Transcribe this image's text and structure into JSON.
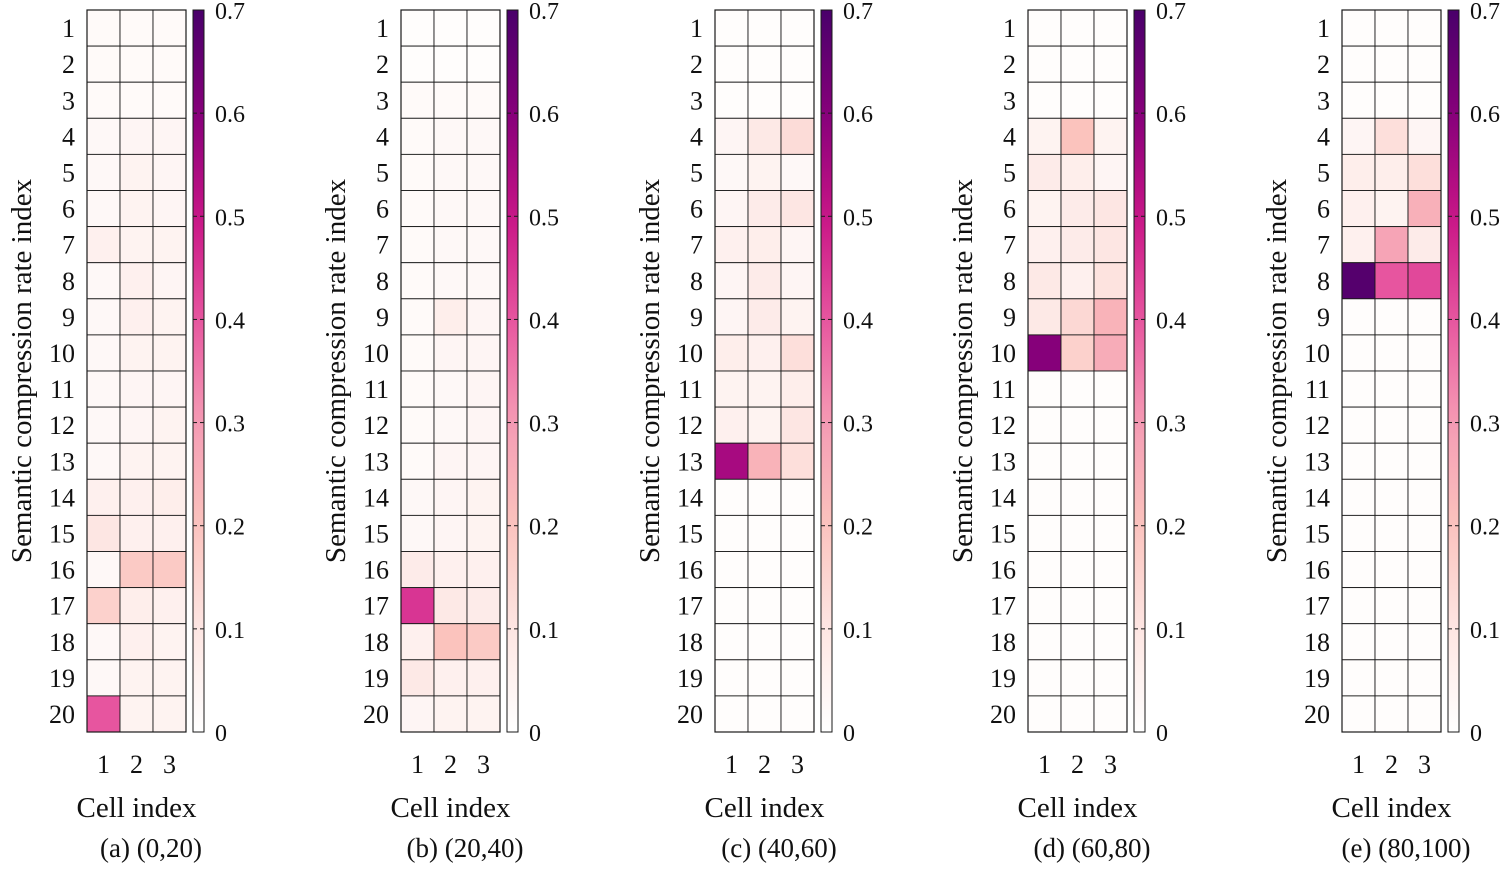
{
  "colorbar": {
    "ticks": [
      "0",
      "0.1",
      "0.2",
      "0.3",
      "0.4",
      "0.5",
      "0.6",
      "0.7"
    ],
    "colormap": [
      [
        0.0,
        "#ffffff"
      ],
      [
        0.1,
        "#fde6e3"
      ],
      [
        0.2,
        "#fbc3bd"
      ],
      [
        0.3,
        "#f59cb4"
      ],
      [
        0.4,
        "#e7559f"
      ],
      [
        0.5,
        "#c81486"
      ],
      [
        0.6,
        "#86007a"
      ],
      [
        0.7,
        "#49006a"
      ]
    ]
  },
  "chart_data": [
    {
      "type": "heatmap",
      "caption": "(a) (0,20)",
      "xlabel": "Cell index",
      "ylabel": "Semantic compression rate index",
      "x_categories": [
        "1",
        "2",
        "3"
      ],
      "y_categories": [
        "1",
        "2",
        "3",
        "4",
        "5",
        "6",
        "7",
        "8",
        "9",
        "10",
        "11",
        "12",
        "13",
        "14",
        "15",
        "16",
        "17",
        "18",
        "19",
        "20"
      ],
      "clim": [
        0,
        0.7
      ],
      "values": [
        [
          0.02,
          0.02,
          0.02
        ],
        [
          0.02,
          0.02,
          0.02
        ],
        [
          0.02,
          0.02,
          0.02
        ],
        [
          0.03,
          0.04,
          0.04
        ],
        [
          0.03,
          0.05,
          0.04
        ],
        [
          0.03,
          0.05,
          0.04
        ],
        [
          0.06,
          0.05,
          0.05
        ],
        [
          0.03,
          0.06,
          0.04
        ],
        [
          0.03,
          0.06,
          0.05
        ],
        [
          0.03,
          0.05,
          0.05
        ],
        [
          0.03,
          0.04,
          0.04
        ],
        [
          0.03,
          0.04,
          0.05
        ],
        [
          0.03,
          0.05,
          0.05
        ],
        [
          0.06,
          0.06,
          0.07
        ],
        [
          0.1,
          0.06,
          0.06
        ],
        [
          0.03,
          0.18,
          0.18
        ],
        [
          0.16,
          0.07,
          0.06
        ],
        [
          0.03,
          0.06,
          0.05
        ],
        [
          0.03,
          0.05,
          0.05
        ],
        [
          0.4,
          0.05,
          0.05
        ]
      ]
    },
    {
      "type": "heatmap",
      "caption": "(b) (20,40)",
      "xlabel": "Cell index",
      "ylabel": "Semantic compression rate index",
      "x_categories": [
        "1",
        "2",
        "3"
      ],
      "y_categories": [
        "1",
        "2",
        "3",
        "4",
        "5",
        "6",
        "7",
        "8",
        "9",
        "10",
        "11",
        "12",
        "13",
        "14",
        "15",
        "16",
        "17",
        "18",
        "19",
        "20"
      ],
      "clim": [
        0,
        0.7
      ],
      "values": [
        [
          0.01,
          0.01,
          0.01
        ],
        [
          0.01,
          0.01,
          0.01
        ],
        [
          0.02,
          0.02,
          0.02
        ],
        [
          0.02,
          0.03,
          0.03
        ],
        [
          0.02,
          0.03,
          0.03
        ],
        [
          0.02,
          0.03,
          0.03
        ],
        [
          0.02,
          0.03,
          0.03
        ],
        [
          0.02,
          0.03,
          0.03
        ],
        [
          0.02,
          0.07,
          0.04
        ],
        [
          0.02,
          0.04,
          0.04
        ],
        [
          0.02,
          0.03,
          0.04
        ],
        [
          0.02,
          0.03,
          0.04
        ],
        [
          0.02,
          0.04,
          0.04
        ],
        [
          0.03,
          0.04,
          0.05
        ],
        [
          0.03,
          0.04,
          0.05
        ],
        [
          0.08,
          0.06,
          0.06
        ],
        [
          0.45,
          0.09,
          0.08
        ],
        [
          0.06,
          0.2,
          0.18
        ],
        [
          0.09,
          0.06,
          0.06
        ],
        [
          0.04,
          0.05,
          0.05
        ]
      ]
    },
    {
      "type": "heatmap",
      "caption": "(c) (40,60)",
      "xlabel": "Cell index",
      "ylabel": "Semantic compression rate index",
      "x_categories": [
        "1",
        "2",
        "3"
      ],
      "y_categories": [
        "1",
        "2",
        "3",
        "4",
        "5",
        "6",
        "7",
        "8",
        "9",
        "10",
        "11",
        "12",
        "13",
        "14",
        "15",
        "16",
        "17",
        "18",
        "19",
        "20"
      ],
      "clim": [
        0,
        0.7
      ],
      "values": [
        [
          0.01,
          0.01,
          0.01
        ],
        [
          0.01,
          0.01,
          0.01
        ],
        [
          0.01,
          0.01,
          0.01
        ],
        [
          0.04,
          0.09,
          0.13
        ],
        [
          0.03,
          0.05,
          0.03
        ],
        [
          0.04,
          0.08,
          0.1
        ],
        [
          0.06,
          0.07,
          0.04
        ],
        [
          0.04,
          0.08,
          0.04
        ],
        [
          0.04,
          0.08,
          0.05
        ],
        [
          0.07,
          0.06,
          0.12
        ],
        [
          0.05,
          0.05,
          0.07
        ],
        [
          0.06,
          0.05,
          0.1
        ],
        [
          0.55,
          0.24,
          0.12
        ],
        [
          0.01,
          0.01,
          0.01
        ],
        [
          0.01,
          0.01,
          0.01
        ],
        [
          0.01,
          0.01,
          0.01
        ],
        [
          0.01,
          0.01,
          0.01
        ],
        [
          0.01,
          0.01,
          0.01
        ],
        [
          0.01,
          0.01,
          0.01
        ],
        [
          0.01,
          0.01,
          0.01
        ]
      ]
    },
    {
      "type": "heatmap",
      "caption": "(d) (60,80)",
      "xlabel": "Cell index",
      "ylabel": "Semantic compression rate index",
      "x_categories": [
        "1",
        "2",
        "3"
      ],
      "y_categories": [
        "1",
        "2",
        "3",
        "4",
        "5",
        "6",
        "7",
        "8",
        "9",
        "10",
        "11",
        "12",
        "13",
        "14",
        "15",
        "16",
        "17",
        "18",
        "19",
        "20"
      ],
      "clim": [
        0,
        0.7
      ],
      "values": [
        [
          0.01,
          0.01,
          0.01
        ],
        [
          0.01,
          0.01,
          0.01
        ],
        [
          0.01,
          0.01,
          0.01
        ],
        [
          0.05,
          0.2,
          0.05
        ],
        [
          0.08,
          0.07,
          0.04
        ],
        [
          0.05,
          0.08,
          0.1
        ],
        [
          0.06,
          0.08,
          0.1
        ],
        [
          0.09,
          0.06,
          0.11
        ],
        [
          0.09,
          0.14,
          0.24
        ],
        [
          0.6,
          0.16,
          0.26
        ],
        [
          0.01,
          0.01,
          0.01
        ],
        [
          0.01,
          0.01,
          0.01
        ],
        [
          0.01,
          0.01,
          0.01
        ],
        [
          0.01,
          0.01,
          0.01
        ],
        [
          0.01,
          0.01,
          0.01
        ],
        [
          0.01,
          0.01,
          0.01
        ],
        [
          0.01,
          0.01,
          0.01
        ],
        [
          0.01,
          0.01,
          0.01
        ],
        [
          0.01,
          0.01,
          0.01
        ],
        [
          0.01,
          0.01,
          0.01
        ]
      ]
    },
    {
      "type": "heatmap",
      "caption": "(e) (80,100)",
      "xlabel": "Cell index",
      "ylabel": "Semantic compression rate index",
      "x_categories": [
        "1",
        "2",
        "3"
      ],
      "y_categories": [
        "1",
        "2",
        "3",
        "4",
        "5",
        "6",
        "7",
        "8",
        "9",
        "10",
        "11",
        "12",
        "13",
        "14",
        "15",
        "16",
        "17",
        "18",
        "19",
        "20"
      ],
      "clim": [
        0,
        0.7
      ],
      "values": [
        [
          0.01,
          0.01,
          0.01
        ],
        [
          0.01,
          0.01,
          0.01
        ],
        [
          0.01,
          0.01,
          0.01
        ],
        [
          0.04,
          0.12,
          0.04
        ],
        [
          0.07,
          0.07,
          0.12
        ],
        [
          0.06,
          0.05,
          0.25
        ],
        [
          0.06,
          0.28,
          0.08
        ],
        [
          0.68,
          0.4,
          0.42
        ],
        [
          0.01,
          0.01,
          0.01
        ],
        [
          0.01,
          0.01,
          0.01
        ],
        [
          0.01,
          0.01,
          0.01
        ],
        [
          0.01,
          0.01,
          0.01
        ],
        [
          0.01,
          0.01,
          0.01
        ],
        [
          0.01,
          0.01,
          0.01
        ],
        [
          0.01,
          0.01,
          0.01
        ],
        [
          0.01,
          0.01,
          0.01
        ],
        [
          0.01,
          0.01,
          0.01
        ],
        [
          0.01,
          0.01,
          0.01
        ],
        [
          0.01,
          0.01,
          0.01
        ],
        [
          0.01,
          0.01,
          0.01
        ]
      ]
    }
  ]
}
